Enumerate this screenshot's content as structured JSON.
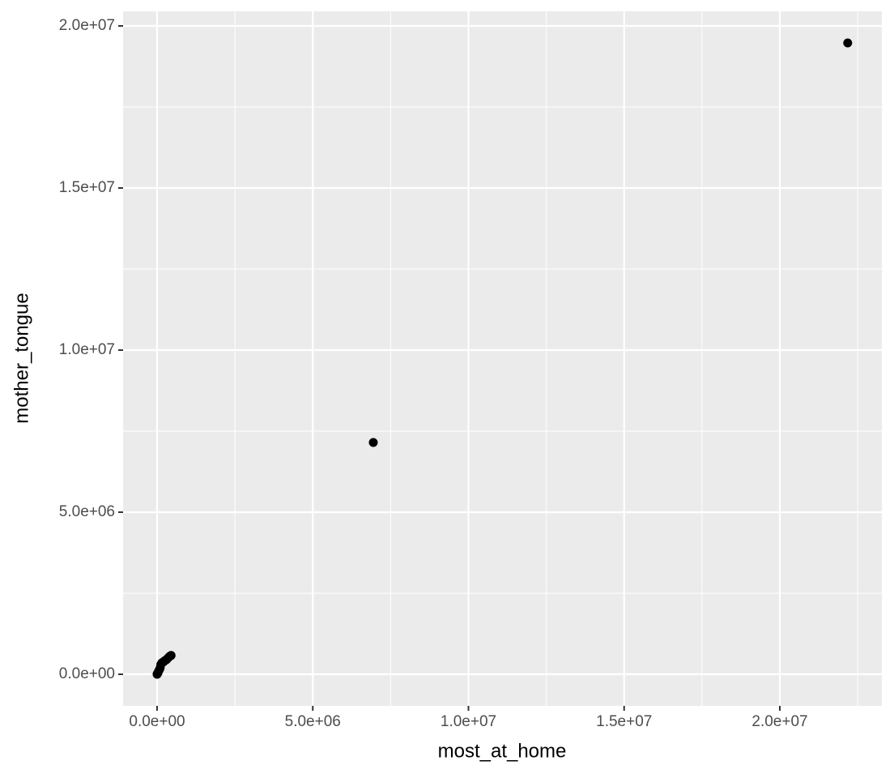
{
  "chart_data": {
    "type": "scatter",
    "x_label": "most_at_home",
    "y_label": "mother_tongue",
    "x": [
      22180000,
      6944000,
      0,
      5000,
      10000,
      20000,
      30000,
      50000,
      80000,
      100000,
      120000,
      150000,
      200000,
      250000,
      300000,
      350000,
      400000,
      450000
    ],
    "values": [
      19475000,
      7150000,
      0,
      8000,
      20000,
      30000,
      50000,
      100000,
      150000,
      200000,
      300000,
      350000,
      380000,
      420000,
      450000,
      500000,
      550000,
      580000
    ],
    "color": "#000000",
    "xlim": [
      -1092000,
      23277000
    ],
    "ylim": [
      -975000,
      20450000
    ],
    "xticks": [
      {
        "value": 0,
        "label": "0.0e+00"
      },
      {
        "value": 5000000,
        "label": "5.0e+06"
      },
      {
        "value": 10000000,
        "label": "1.0e+07"
      },
      {
        "value": 15000000,
        "label": "1.5e+07"
      },
      {
        "value": 20000000,
        "label": "2.0e+07"
      }
    ],
    "yticks": [
      {
        "value": 0,
        "label": "0.0e+00"
      },
      {
        "value": 5000000,
        "label": "5.0e+06"
      },
      {
        "value": 10000000,
        "label": "1.0e+07"
      },
      {
        "value": 15000000,
        "label": "1.5e+07"
      },
      {
        "value": 20000000,
        "label": "2.0e+07"
      }
    ],
    "x_minor_ticks": [
      2500000,
      7500000,
      12500000,
      17500000,
      22500000
    ],
    "y_minor_ticks": [
      2500000,
      7500000,
      12500000,
      17500000
    ],
    "grid": true
  }
}
